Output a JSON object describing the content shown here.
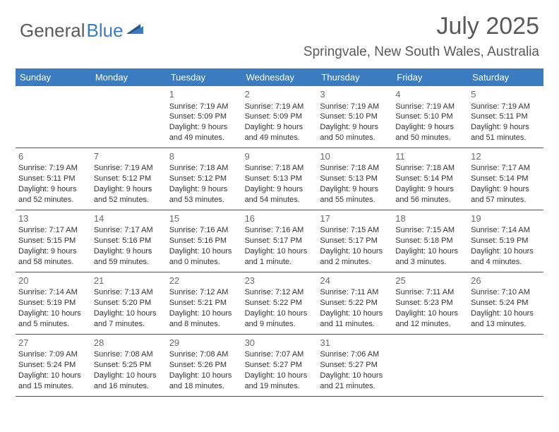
{
  "logo": {
    "part1": "General",
    "part2": "Blue"
  },
  "title": "July 2025",
  "location": "Springvale, New South Wales, Australia",
  "colors": {
    "header_bg": "#3b7bbf",
    "header_text": "#ffffff",
    "border": "#2a5a8a",
    "text": "#333333",
    "title_text": "#5a5a5a"
  },
  "weekdays": [
    "Sunday",
    "Monday",
    "Tuesday",
    "Wednesday",
    "Thursday",
    "Friday",
    "Saturday"
  ],
  "weeks": [
    [
      null,
      null,
      {
        "n": "1",
        "sr": "Sunrise: 7:19 AM",
        "ss": "Sunset: 5:09 PM",
        "d1": "Daylight: 9 hours",
        "d2": "and 49 minutes."
      },
      {
        "n": "2",
        "sr": "Sunrise: 7:19 AM",
        "ss": "Sunset: 5:09 PM",
        "d1": "Daylight: 9 hours",
        "d2": "and 49 minutes."
      },
      {
        "n": "3",
        "sr": "Sunrise: 7:19 AM",
        "ss": "Sunset: 5:10 PM",
        "d1": "Daylight: 9 hours",
        "d2": "and 50 minutes."
      },
      {
        "n": "4",
        "sr": "Sunrise: 7:19 AM",
        "ss": "Sunset: 5:10 PM",
        "d1": "Daylight: 9 hours",
        "d2": "and 50 minutes."
      },
      {
        "n": "5",
        "sr": "Sunrise: 7:19 AM",
        "ss": "Sunset: 5:11 PM",
        "d1": "Daylight: 9 hours",
        "d2": "and 51 minutes."
      }
    ],
    [
      {
        "n": "6",
        "sr": "Sunrise: 7:19 AM",
        "ss": "Sunset: 5:11 PM",
        "d1": "Daylight: 9 hours",
        "d2": "and 52 minutes."
      },
      {
        "n": "7",
        "sr": "Sunrise: 7:19 AM",
        "ss": "Sunset: 5:12 PM",
        "d1": "Daylight: 9 hours",
        "d2": "and 52 minutes."
      },
      {
        "n": "8",
        "sr": "Sunrise: 7:18 AM",
        "ss": "Sunset: 5:12 PM",
        "d1": "Daylight: 9 hours",
        "d2": "and 53 minutes."
      },
      {
        "n": "9",
        "sr": "Sunrise: 7:18 AM",
        "ss": "Sunset: 5:13 PM",
        "d1": "Daylight: 9 hours",
        "d2": "and 54 minutes."
      },
      {
        "n": "10",
        "sr": "Sunrise: 7:18 AM",
        "ss": "Sunset: 5:13 PM",
        "d1": "Daylight: 9 hours",
        "d2": "and 55 minutes."
      },
      {
        "n": "11",
        "sr": "Sunrise: 7:18 AM",
        "ss": "Sunset: 5:14 PM",
        "d1": "Daylight: 9 hours",
        "d2": "and 56 minutes."
      },
      {
        "n": "12",
        "sr": "Sunrise: 7:17 AM",
        "ss": "Sunset: 5:14 PM",
        "d1": "Daylight: 9 hours",
        "d2": "and 57 minutes."
      }
    ],
    [
      {
        "n": "13",
        "sr": "Sunrise: 7:17 AM",
        "ss": "Sunset: 5:15 PM",
        "d1": "Daylight: 9 hours",
        "d2": "and 58 minutes."
      },
      {
        "n": "14",
        "sr": "Sunrise: 7:17 AM",
        "ss": "Sunset: 5:16 PM",
        "d1": "Daylight: 9 hours",
        "d2": "and 59 minutes."
      },
      {
        "n": "15",
        "sr": "Sunrise: 7:16 AM",
        "ss": "Sunset: 5:16 PM",
        "d1": "Daylight: 10 hours",
        "d2": "and 0 minutes."
      },
      {
        "n": "16",
        "sr": "Sunrise: 7:16 AM",
        "ss": "Sunset: 5:17 PM",
        "d1": "Daylight: 10 hours",
        "d2": "and 1 minute."
      },
      {
        "n": "17",
        "sr": "Sunrise: 7:15 AM",
        "ss": "Sunset: 5:17 PM",
        "d1": "Daylight: 10 hours",
        "d2": "and 2 minutes."
      },
      {
        "n": "18",
        "sr": "Sunrise: 7:15 AM",
        "ss": "Sunset: 5:18 PM",
        "d1": "Daylight: 10 hours",
        "d2": "and 3 minutes."
      },
      {
        "n": "19",
        "sr": "Sunrise: 7:14 AM",
        "ss": "Sunset: 5:19 PM",
        "d1": "Daylight: 10 hours",
        "d2": "and 4 minutes."
      }
    ],
    [
      {
        "n": "20",
        "sr": "Sunrise: 7:14 AM",
        "ss": "Sunset: 5:19 PM",
        "d1": "Daylight: 10 hours",
        "d2": "and 5 minutes."
      },
      {
        "n": "21",
        "sr": "Sunrise: 7:13 AM",
        "ss": "Sunset: 5:20 PM",
        "d1": "Daylight: 10 hours",
        "d2": "and 7 minutes."
      },
      {
        "n": "22",
        "sr": "Sunrise: 7:12 AM",
        "ss": "Sunset: 5:21 PM",
        "d1": "Daylight: 10 hours",
        "d2": "and 8 minutes."
      },
      {
        "n": "23",
        "sr": "Sunrise: 7:12 AM",
        "ss": "Sunset: 5:22 PM",
        "d1": "Daylight: 10 hours",
        "d2": "and 9 minutes."
      },
      {
        "n": "24",
        "sr": "Sunrise: 7:11 AM",
        "ss": "Sunset: 5:22 PM",
        "d1": "Daylight: 10 hours",
        "d2": "and 11 minutes."
      },
      {
        "n": "25",
        "sr": "Sunrise: 7:11 AM",
        "ss": "Sunset: 5:23 PM",
        "d1": "Daylight: 10 hours",
        "d2": "and 12 minutes."
      },
      {
        "n": "26",
        "sr": "Sunrise: 7:10 AM",
        "ss": "Sunset: 5:24 PM",
        "d1": "Daylight: 10 hours",
        "d2": "and 13 minutes."
      }
    ],
    [
      {
        "n": "27",
        "sr": "Sunrise: 7:09 AM",
        "ss": "Sunset: 5:24 PM",
        "d1": "Daylight: 10 hours",
        "d2": "and 15 minutes."
      },
      {
        "n": "28",
        "sr": "Sunrise: 7:08 AM",
        "ss": "Sunset: 5:25 PM",
        "d1": "Daylight: 10 hours",
        "d2": "and 16 minutes."
      },
      {
        "n": "29",
        "sr": "Sunrise: 7:08 AM",
        "ss": "Sunset: 5:26 PM",
        "d1": "Daylight: 10 hours",
        "d2": "and 18 minutes."
      },
      {
        "n": "30",
        "sr": "Sunrise: 7:07 AM",
        "ss": "Sunset: 5:27 PM",
        "d1": "Daylight: 10 hours",
        "d2": "and 19 minutes."
      },
      {
        "n": "31",
        "sr": "Sunrise: 7:06 AM",
        "ss": "Sunset: 5:27 PM",
        "d1": "Daylight: 10 hours",
        "d2": "and 21 minutes."
      },
      null,
      null
    ]
  ]
}
